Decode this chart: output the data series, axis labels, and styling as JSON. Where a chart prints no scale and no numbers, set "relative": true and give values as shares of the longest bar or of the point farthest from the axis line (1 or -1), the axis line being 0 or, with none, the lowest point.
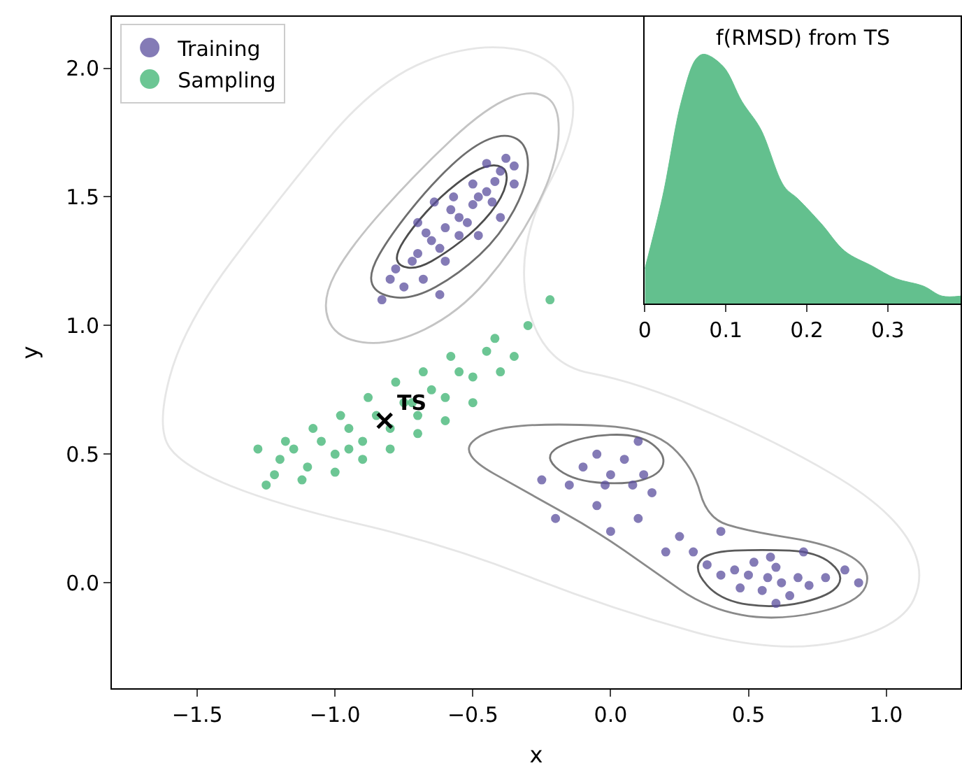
{
  "chart_data": [
    {
      "type": "scatter",
      "xlabel": "x",
      "ylabel": "y",
      "xlim": [
        -1.81,
        1.27
      ],
      "ylim": [
        -0.41,
        2.2
      ],
      "xticks": [
        {
          "value": -1.5,
          "label": "−1.5"
        },
        {
          "value": -1.0,
          "label": "−1.0"
        },
        {
          "value": -0.5,
          "label": "−0.5"
        },
        {
          "value": 0,
          "label": "0.0"
        },
        0.5,
        {
          "value": 1,
          "label": "1.0"
        }
      ],
      "yticks": [
        {
          "value": 0,
          "label": "0.0"
        },
        0.5,
        {
          "value": 1,
          "label": "1.0"
        },
        1.5,
        {
          "value": 2,
          "label": "2.0"
        }
      ],
      "legend": "top left",
      "annotations": [
        {
          "text": "TS",
          "x": -0.82,
          "y": 0.63
        }
      ],
      "series": [
        {
          "marker": "circle",
          "name": "Training",
          "color": "#5b4f9e",
          "x": [
            -0.55,
            -0.6,
            -0.5,
            -0.65,
            -0.45,
            -0.7,
            -0.42,
            -0.58,
            -0.52,
            -0.62,
            -0.48,
            -0.55,
            -0.57,
            -0.67,
            -0.43,
            -0.72,
            -0.4,
            -0.5,
            -0.6,
            -0.78,
            -0.8,
            -0.75,
            -0.68,
            -0.38,
            -0.35,
            -0.45,
            -0.64,
            -0.7,
            -0.4,
            -0.48,
            -0.83,
            -0.62,
            -0.35,
            0.57,
            0.5,
            0.62,
            0.45,
            0.68,
            0.55,
            0.6,
            0.4,
            0.72,
            0.52,
            0.65,
            0.35,
            0.78,
            0.47,
            0.58,
            0.3,
            0.85,
            0.6,
            0.25,
            0.2,
            0.4,
            0.7,
            0.9,
            -0.1,
            -0.05,
            0.0,
            0.05,
            0.1,
            0.12,
            -0.02,
            0.08,
            -0.15,
            -0.25,
            -0.2,
            0.0,
            0.1,
            0.15,
            -0.05
          ],
          "values": [
            1.42,
            1.38,
            1.47,
            1.33,
            1.52,
            1.28,
            1.56,
            1.45,
            1.4,
            1.3,
            1.5,
            1.35,
            1.5,
            1.36,
            1.48,
            1.25,
            1.6,
            1.55,
            1.25,
            1.22,
            1.18,
            1.15,
            1.18,
            1.65,
            1.62,
            1.63,
            1.48,
            1.4,
            1.42,
            1.35,
            1.1,
            1.12,
            1.55,
            0.02,
            0.03,
            0.0,
            0.05,
            0.02,
            -0.03,
            0.06,
            0.03,
            -0.01,
            0.08,
            -0.05,
            0.07,
            0.02,
            -0.02,
            0.1,
            0.12,
            0.05,
            -0.08,
            0.18,
            0.12,
            0.2,
            0.12,
            0.0,
            0.45,
            0.5,
            0.42,
            0.48,
            0.55,
            0.42,
            0.38,
            0.38,
            0.38,
            0.4,
            0.25,
            0.2,
            0.25,
            0.35,
            0.3
          ]
        },
        {
          "marker": "circle",
          "name": "Sampling",
          "color": "#3cb371",
          "x": [
            -1.2,
            -1.15,
            -1.1,
            -1.05,
            -1.0,
            -0.95,
            -0.9,
            -0.85,
            -0.8,
            -0.75,
            -0.7,
            -0.65,
            -0.6,
            -0.55,
            -0.5,
            -0.45,
            -0.42,
            -1.08,
            -0.98,
            -0.88,
            -0.78,
            -0.68,
            -0.58,
            -1.22,
            -1.12,
            -1.0,
            -0.9,
            -0.8,
            -0.7,
            -0.6,
            -0.5,
            -0.4,
            -0.3,
            -0.22,
            -1.25,
            -1.28,
            -0.35,
            -1.18,
            -0.95,
            -0.72
          ],
          "values": [
            0.48,
            0.52,
            0.45,
            0.55,
            0.5,
            0.6,
            0.55,
            0.65,
            0.6,
            0.7,
            0.65,
            0.75,
            0.72,
            0.82,
            0.8,
            0.9,
            0.95,
            0.6,
            0.65,
            0.72,
            0.78,
            0.82,
            0.88,
            0.42,
            0.4,
            0.43,
            0.48,
            0.52,
            0.58,
            0.63,
            0.7,
            0.82,
            1.0,
            1.1,
            0.38,
            0.52,
            0.88,
            0.55,
            0.52,
            0.7
          ]
        },
        {
          "marker": "cross",
          "color": "#000000",
          "x": [
            -0.82
          ],
          "values": [
            0.63
          ]
        }
      ]
    },
    {
      "type": "area",
      "relative": true,
      "title": "f(RMSD) from TS",
      "color": "#63c08e",
      "tick_labels": "x",
      "xlim": [
        0,
        0.39
      ],
      "xticks": [
        0,
        0.1,
        0.2,
        0.3
      ],
      "x": [
        0.0,
        0.022,
        0.045,
        0.063,
        0.073,
        0.097,
        0.12,
        0.143,
        0.172,
        0.189,
        0.218,
        0.247,
        0.281,
        0.31,
        0.344,
        0.367,
        0.39
      ],
      "values": [
        0.14,
        0.43,
        0.81,
        0.98,
        1.0,
        0.95,
        0.81,
        0.7,
        0.47,
        0.42,
        0.32,
        0.21,
        0.15,
        0.1,
        0.07,
        0.03,
        0.03
      ]
    }
  ]
}
